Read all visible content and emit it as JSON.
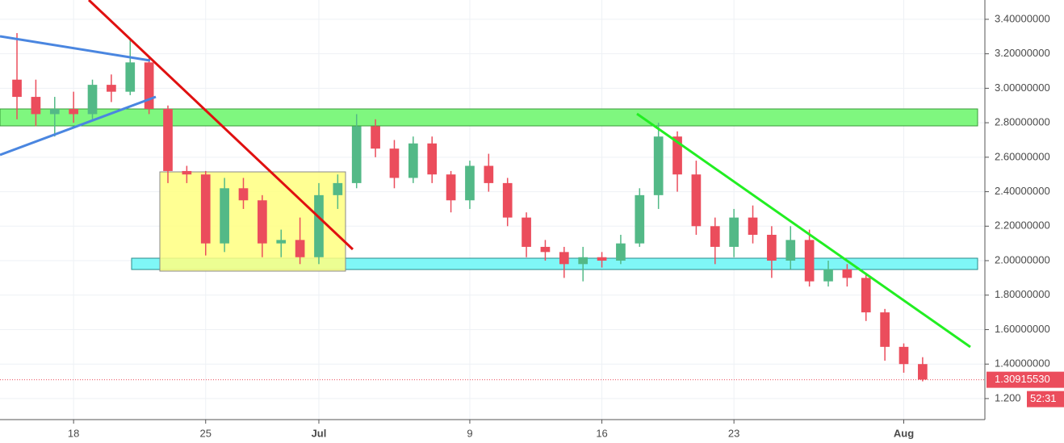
{
  "chart_data": {
    "type": "candlestick",
    "x": [
      -3,
      -2,
      -1,
      0,
      1,
      2,
      3,
      4,
      5,
      6,
      7,
      8,
      9,
      10,
      11,
      12,
      13,
      14,
      15,
      16,
      17,
      18,
      19,
      20,
      21,
      22,
      23,
      24,
      25,
      26,
      27,
      28,
      29,
      30,
      31,
      32,
      33,
      34,
      35,
      36,
      37,
      38,
      39,
      40,
      41,
      42,
      43,
      44,
      45
    ],
    "open": [
      3.05,
      2.95,
      2.85,
      2.88,
      2.85,
      3.02,
      2.98,
      3.15,
      2.88,
      2.52,
      2.5,
      2.1,
      2.42,
      2.35,
      2.1,
      2.12,
      2.02,
      2.38,
      2.45,
      2.78,
      2.65,
      2.48,
      2.68,
      2.5,
      2.35,
      2.55,
      2.45,
      2.25,
      2.08,
      2.05,
      1.98,
      2.02,
      2.0,
      2.1,
      2.38,
      2.72,
      2.5,
      2.2,
      2.08,
      2.25,
      2.15,
      2.0,
      2.12,
      1.88,
      1.95,
      1.9,
      1.7,
      1.5,
      1.4
    ],
    "high": [
      3.32,
      3.05,
      2.95,
      2.98,
      3.05,
      3.08,
      3.28,
      3.18,
      2.9,
      2.55,
      2.52,
      2.48,
      2.48,
      2.38,
      2.18,
      2.25,
      2.45,
      2.5,
      2.85,
      2.82,
      2.7,
      2.72,
      2.72,
      2.52,
      2.58,
      2.62,
      2.48,
      2.28,
      2.12,
      2.08,
      2.08,
      2.05,
      2.15,
      2.42,
      2.8,
      2.75,
      2.58,
      2.25,
      2.3,
      2.32,
      2.2,
      2.2,
      2.18,
      2.0,
      1.98,
      1.92,
      1.72,
      1.52,
      1.44
    ],
    "low": [
      2.82,
      2.78,
      2.72,
      2.8,
      2.82,
      2.92,
      2.96,
      2.85,
      2.45,
      2.45,
      2.03,
      2.05,
      2.3,
      2.02,
      2.02,
      1.98,
      1.98,
      2.3,
      2.42,
      2.6,
      2.42,
      2.45,
      2.45,
      2.28,
      2.3,
      2.4,
      2.2,
      2.02,
      2.0,
      1.9,
      1.88,
      1.96,
      1.98,
      2.08,
      2.3,
      2.4,
      2.15,
      1.98,
      2.02,
      2.1,
      1.9,
      1.95,
      1.85,
      1.85,
      1.85,
      1.65,
      1.42,
      1.35,
      1.3
    ],
    "close": [
      2.95,
      2.85,
      2.88,
      2.85,
      3.02,
      2.98,
      3.15,
      2.88,
      2.52,
      2.5,
      2.1,
      2.42,
      2.35,
      2.1,
      2.12,
      2.02,
      2.38,
      2.45,
      2.78,
      2.65,
      2.48,
      2.68,
      2.5,
      2.35,
      2.55,
      2.45,
      2.25,
      2.08,
      2.05,
      1.98,
      2.02,
      2.0,
      2.1,
      2.38,
      2.72,
      2.5,
      2.2,
      2.08,
      2.25,
      2.15,
      2.0,
      2.12,
      1.88,
      1.95,
      1.9,
      1.7,
      1.5,
      1.4,
      1.31
    ],
    "up_color": "#53b987",
    "down_color": "#eb4d5c",
    "xlim": [
      -3.9,
      48.3
    ],
    "xticks": [
      {
        "value": 0,
        "label": "18"
      },
      {
        "value": 7,
        "label": "25"
      },
      {
        "value": 13,
        "label": "Jul"
      },
      {
        "value": 21,
        "label": "9"
      },
      {
        "value": 28,
        "label": "16"
      },
      {
        "value": 35,
        "label": "23"
      },
      {
        "value": 44,
        "label": "Aug"
      }
    ],
    "ylim": [
      1.078,
      3.512
    ],
    "yticks": [
      {
        "value": 1.2,
        "label": "1.200"
      },
      {
        "value": 1.4,
        "label": "1.40000000"
      },
      {
        "value": 1.6,
        "label": "1.60000000"
      },
      {
        "value": 1.8,
        "label": "1.80000000"
      },
      {
        "value": 2.0,
        "label": "2.00000000"
      },
      {
        "value": 2.2,
        "label": "2.20000000"
      },
      {
        "value": 2.4,
        "label": "2.40000000"
      },
      {
        "value": 2.6,
        "label": "2.60000000"
      },
      {
        "value": 2.8,
        "label": "2.80000000"
      },
      {
        "value": 3.0,
        "label": "3.00000000"
      },
      {
        "value": 3.2,
        "label": "3.20000000"
      },
      {
        "value": 3.4,
        "label": "3.40000000"
      }
    ],
    "grid": true,
    "price_line": {
      "value": 1.3091553,
      "label": "1.30915530"
    },
    "countdown": "52:31"
  }
}
